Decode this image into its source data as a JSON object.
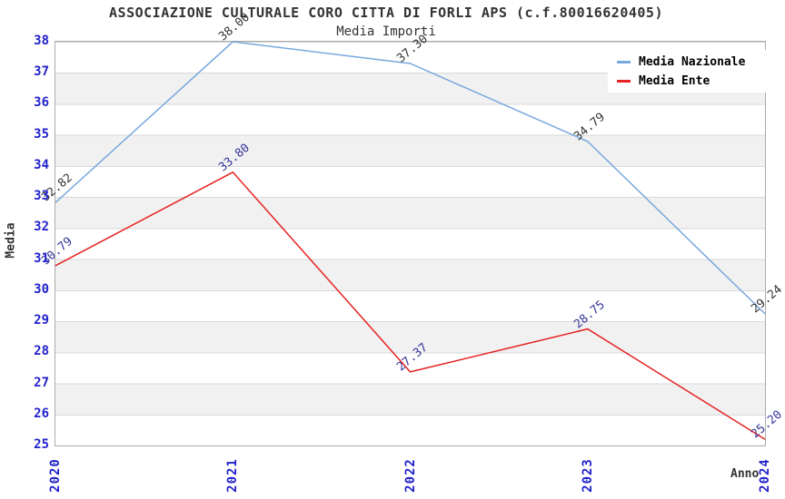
{
  "chart_data": {
    "type": "line",
    "title": "ASSOCIAZIONE CULTURALE CORO CITTA DI FORLI APS (c.f.80016620405)",
    "subtitle": "Media Importi",
    "xlabel": "Anno",
    "ylabel": "Media",
    "x": [
      "2020",
      "2021",
      "2022",
      "2023",
      "2024"
    ],
    "ylim": [
      25,
      38
    ],
    "ytick_step": 1,
    "grid": "horizontal-bands",
    "legend_position": "top-right",
    "series": [
      {
        "name": "Media Nazionale",
        "color": "#77a8dd",
        "label_color": "#333333",
        "values": [
          32.82,
          38.0,
          37.3,
          34.79,
          29.24
        ]
      },
      {
        "name": "Media Ente",
        "color": "#e62222",
        "label_color": "#333399",
        "values": [
          30.79,
          33.8,
          27.37,
          28.75,
          25.2
        ]
      }
    ],
    "colors": {
      "tick_label": "#2222cc",
      "title_color": "#333333",
      "band_fill": "#f1f1f1",
      "grid_line": "#d9d9d9",
      "frame": "#aaaaaa",
      "legend_text": "#000000"
    }
  }
}
